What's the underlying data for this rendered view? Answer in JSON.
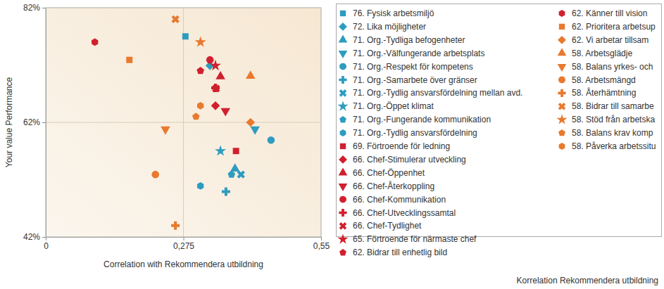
{
  "chart_data": {
    "type": "scatter",
    "x_label": "Correlation with Rekommendera utbildning",
    "y_label": "Your value Performance",
    "annotation": "Korrelation Rekommendera utbildning",
    "xlim": [
      0,
      0.55
    ],
    "ylim": [
      42,
      82
    ],
    "xticks": [
      {
        "value": 0,
        "label": "0"
      },
      {
        "value": 0.275,
        "label": "0,275"
      },
      {
        "value": 0.55,
        "label": "0,55"
      }
    ],
    "yticks": [
      {
        "value": 42,
        "label": "42%"
      },
      {
        "value": 62,
        "label": "62%"
      },
      {
        "value": 82,
        "label": "82%"
      }
    ],
    "grid": true,
    "legend": "right",
    "series": [
      {
        "name": "76. Fysisk arbetsmiljö",
        "color": "#2e9cbf",
        "marker": "square",
        "x": [
          0.279
        ],
        "values": [
          77.0
        ]
      },
      {
        "name": "72. Lika möjligheter",
        "color": "#2e9cbf",
        "marker": "diamond",
        "x": [
          0.328
        ],
        "values": [
          71.9
        ]
      },
      {
        "name": "71. Org.-Tydliga befogenheter",
        "color": "#2e9cbf",
        "marker": "triangle",
        "x": [
          0.378
        ],
        "values": [
          53.9
        ]
      },
      {
        "name": "71. Org.-Välfungerande arbetsplats",
        "color": "#2e9cbf",
        "marker": "triangle-down",
        "x": [
          0.418
        ],
        "values": [
          60.8
        ]
      },
      {
        "name": "71. Org.-Respekt för kompetens",
        "color": "#2e9cbf",
        "marker": "circle",
        "x": [
          0.45
        ],
        "values": [
          58.9
        ]
      },
      {
        "name": "71. Org.-Samarbete över gränser",
        "color": "#2e9cbf",
        "marker": "cross",
        "x": [
          0.36
        ],
        "values": [
          49.9
        ]
      },
      {
        "name": "71. Org.-Tydlig ansvarsfördelning mellan avd.",
        "color": "#2e9cbf",
        "marker": "x",
        "x": [
          0.39
        ],
        "values": [
          52.9
        ]
      },
      {
        "name": "71. Org.-Öppet klimat",
        "color": "#2e9cbf",
        "marker": "star",
        "x": [
          0.349
        ],
        "values": [
          57.0
        ]
      },
      {
        "name": "71. Org.-Fungerande kommunikation",
        "color": "#2e9cbf",
        "marker": "pentagon",
        "x": [
          0.371
        ],
        "values": [
          52.9
        ]
      },
      {
        "name": "71. Org.-Tydlig ansvarsfördelning",
        "color": "#2e9cbf",
        "marker": "hexagon",
        "x": [
          0.309
        ],
        "values": [
          50.9
        ]
      },
      {
        "name": "69. Förtroende för ledning",
        "color": "#d0202e",
        "marker": "square",
        "x": [
          0.38
        ],
        "values": [
          57.0
        ]
      },
      {
        "name": "66. Chef-Stimulerar utveckling",
        "color": "#d0202e",
        "marker": "diamond",
        "x": [
          0.339
        ],
        "values": [
          64.9
        ]
      },
      {
        "name": "66. Chef-Öppenhet",
        "color": "#d0202e",
        "marker": "triangle",
        "x": [
          0.349
        ],
        "values": [
          70.0
        ]
      },
      {
        "name": "66. Chef-Återkoppling",
        "color": "#d0202e",
        "marker": "triangle-down",
        "x": [
          0.359
        ],
        "values": [
          64.0
        ]
      },
      {
        "name": "66. Chef-Kommunikation",
        "color": "#d0202e",
        "marker": "circle",
        "x": [
          0.328
        ],
        "values": [
          72.9
        ]
      },
      {
        "name": "66. Chef-Utvecklingssamtal",
        "color": "#d0202e",
        "marker": "cross",
        "x": [
          0.339
        ],
        "values": [
          68.0
        ]
      },
      {
        "name": "66. Chef-Tydlighet",
        "color": "#d0202e",
        "marker": "x",
        "x": [
          0.34
        ],
        "values": [
          67.9
        ]
      },
      {
        "name": "65. Förtroende för närmaste chef",
        "color": "#d0202e",
        "marker": "star",
        "x": [
          0.339
        ],
        "values": [
          71.9
        ]
      },
      {
        "name": "62. Bidrar till enhetlig bild",
        "color": "#d0202e",
        "marker": "pentagon",
        "x": [
          0.309
        ],
        "values": [
          71.0
        ]
      },
      {
        "name": "62. Känner till vision",
        "color": "#d0202e",
        "marker": "hexagon",
        "x": [
          0.098
        ],
        "values": [
          76.0
        ]
      },
      {
        "name": "62. Prioritera arbetsup",
        "color": "#e8792e",
        "marker": "square",
        "x": [
          0.167
        ],
        "values": [
          72.9
        ]
      },
      {
        "name": "62. Vi arbetar tillsam",
        "color": "#e8792e",
        "marker": "diamond",
        "x": [
          0.409
        ],
        "values": [
          62.0
        ]
      },
      {
        "name": "58. Arbetsglädje",
        "color": "#e8792e",
        "marker": "triangle",
        "x": [
          0.409
        ],
        "values": [
          70.1
        ]
      },
      {
        "name": "58. Balans yrkes- och",
        "color": "#e8792e",
        "marker": "triangle-down",
        "x": [
          0.239
        ],
        "values": [
          60.8
        ]
      },
      {
        "name": "58. Arbetsmängd",
        "color": "#e8792e",
        "marker": "circle",
        "x": [
          0.219
        ],
        "values": [
          52.9
        ]
      },
      {
        "name": "58. Återhämtning",
        "color": "#e8792e",
        "marker": "cross",
        "x": [
          0.259
        ],
        "values": [
          44.0
        ]
      },
      {
        "name": "58. Bidrar till samarbe",
        "color": "#e8792e",
        "marker": "x",
        "x": [
          0.259
        ],
        "values": [
          80.0
        ]
      },
      {
        "name": "58. Stöd från arbetska",
        "color": "#e8792e",
        "marker": "star",
        "x": [
          0.309
        ],
        "values": [
          76.0
        ]
      },
      {
        "name": "58. Balans krav komp",
        "color": "#e8792e",
        "marker": "pentagon",
        "x": [
          0.3
        ],
        "values": [
          63.0
        ]
      },
      {
        "name": "58. Påverka arbetssitu",
        "color": "#e8792e",
        "marker": "hexagon",
        "x": [
          0.309
        ],
        "values": [
          64.9
        ]
      }
    ]
  }
}
